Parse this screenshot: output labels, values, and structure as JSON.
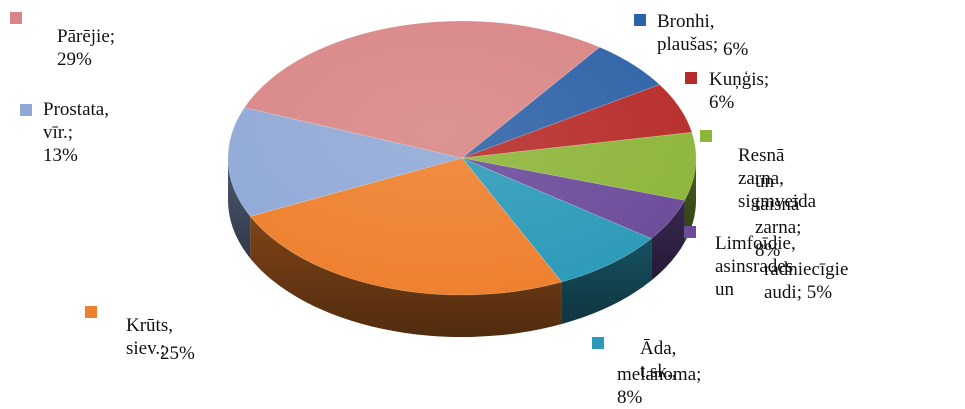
{
  "chart_data": {
    "type": "pie",
    "style": "3d",
    "start_angle_deg": -54,
    "direction": "clockwise",
    "legend_placement": "labels around pie",
    "slices": [
      {
        "label": "Bronhi, plaušas; 6%",
        "lines": [
          "Bronhi, plaušas;",
          "6%"
        ],
        "value": 6,
        "color": "#2e62a7"
      },
      {
        "label": "Kuņģis; 6%",
        "lines": [
          "Kuņģis; 6%"
        ],
        "value": 6,
        "color": "#b72c2a"
      },
      {
        "label": "Resnā zarna, sigmveida un taisnā zarna; 8%",
        "lines": [
          "Resnā zarna, sigmveida",
          "un taisnā zarna; 8%"
        ],
        "value": 8,
        "color": "#8db53a"
      },
      {
        "label": "Limfoīdie, asinsrades un radniecīgie audi; 5%",
        "lines": [
          "Limfoīdie, asinsrades un",
          "radniecīgie audi; 5%"
        ],
        "value": 5,
        "color": "#6b4b9a"
      },
      {
        "label": "Āda, t.sk., melanoma; 8%",
        "lines": [
          "Āda, t.sk.,",
          "melanoma; 8%"
        ],
        "value": 8,
        "color": "#2b9ab8"
      },
      {
        "label": "Krūts, siev.; 25%",
        "lines": [
          "Krūts, siev.;",
          "25%"
        ],
        "value": 25,
        "color": "#ee7f2c"
      },
      {
        "label": "Prostata, vīr.; 13%",
        "lines": [
          "Prostata, vīr.; 13%"
        ],
        "value": 13,
        "color": "#8fa8d6"
      },
      {
        "label": "Pārējie; 29%",
        "lines": [
          "Pārējie; 29%"
        ],
        "value": 29,
        "color": "#d98585"
      }
    ]
  }
}
